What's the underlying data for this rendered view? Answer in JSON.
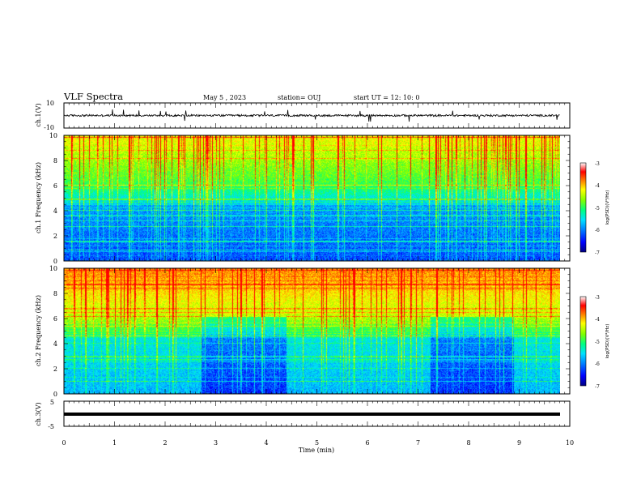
{
  "header": {
    "title": "VLF Spectra",
    "date": "May 5 , 2023",
    "station": "station= OUJ",
    "start_ut": "start UT = 12: 10: 0"
  },
  "chart_data": [
    {
      "type": "line",
      "name": "ch1-waveform",
      "ylabel": "ch.1(V)",
      "ylim": [
        -10,
        10
      ],
      "y_tick_labels": [
        "10",
        "-10"
      ],
      "description_values": {
        "baseline": 0,
        "typical_amplitude": 0.8,
        "spike_max": 5
      },
      "xlim": [
        0,
        10
      ]
    },
    {
      "type": "heatmap",
      "name": "ch1-spectrogram",
      "ylabel": "ch.1 Frequency (kHz)",
      "ylim": [
        0,
        10
      ],
      "y_ticks": [
        "0",
        "2",
        "4",
        "6",
        "8",
        "10"
      ],
      "xlim": [
        0,
        10
      ],
      "data_end_min": 9.8,
      "colorbar": {
        "label": "log(PSD)(V²/Hz)",
        "range": [
          -7,
          -3
        ],
        "ticks": [
          "-3",
          "-4",
          "-5",
          "-6",
          "-7"
        ]
      }
    },
    {
      "type": "heatmap",
      "name": "ch2-spectrogram",
      "ylabel": "ch.2 Frequency (kHz)",
      "ylim": [
        0,
        10
      ],
      "y_ticks": [
        "0",
        "2",
        "4",
        "6",
        "8",
        "10"
      ],
      "xlim": [
        0,
        10
      ],
      "data_end_min": 9.8,
      "quiet_intervals_min": [
        [
          2.7,
          4.4
        ],
        [
          7.25,
          8.9
        ]
      ],
      "colorbar": {
        "label": "log(PSD)(V²/Hz)",
        "range": [
          -7,
          -3
        ],
        "ticks": [
          "-3",
          "-4",
          "-5",
          "-6",
          "-7"
        ]
      }
    },
    {
      "type": "line",
      "name": "ch3-waveform",
      "ylabel": "ch.3(V)",
      "ylim": [
        -5,
        5
      ],
      "y_tick_labels": [
        "5",
        "-5"
      ],
      "constant_value": 0,
      "xlim": [
        0,
        10
      ]
    }
  ],
  "x_axis": {
    "label": "Time (min)",
    "ticks": [
      "0",
      "1",
      "2",
      "3",
      "4",
      "5",
      "6",
      "7",
      "8",
      "9",
      "10"
    ]
  },
  "colors": {
    "colormap": [
      "#000080",
      "#0000ff",
      "#0080ff",
      "#00e0ff",
      "#00ff80",
      "#80ff00",
      "#ffff00",
      "#ff8000",
      "#ff0000",
      "#ffffff"
    ]
  }
}
